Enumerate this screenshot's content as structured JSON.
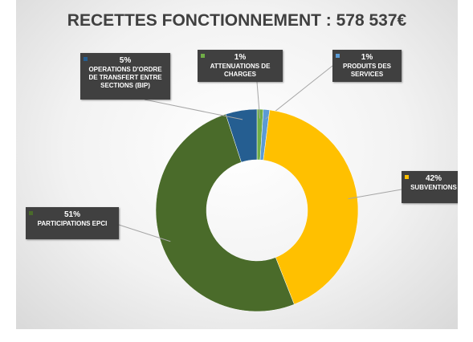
{
  "chart_data": {
    "type": "donut",
    "title": "RECETTES FONCTIONNEMENT : 578 537€",
    "categories": [
      "ATTENUATIONS DE CHARGES",
      "PRODUITS DES SERVICES",
      "SUBVENTIONS",
      "PARTICIPATIONS EPCI",
      "OPERATIONS D'ORDRE DE TRANSFERT ENTRE SECTIONS (BIP)"
    ],
    "values": [
      1,
      1,
      42,
      51,
      5
    ],
    "value_labels": [
      "1%",
      "1%",
      "42%",
      "51%",
      "5%"
    ],
    "colors": [
      "#70ad47",
      "#5b9bd5",
      "#ffc000",
      "#4a6b2a",
      "#255e91"
    ]
  }
}
